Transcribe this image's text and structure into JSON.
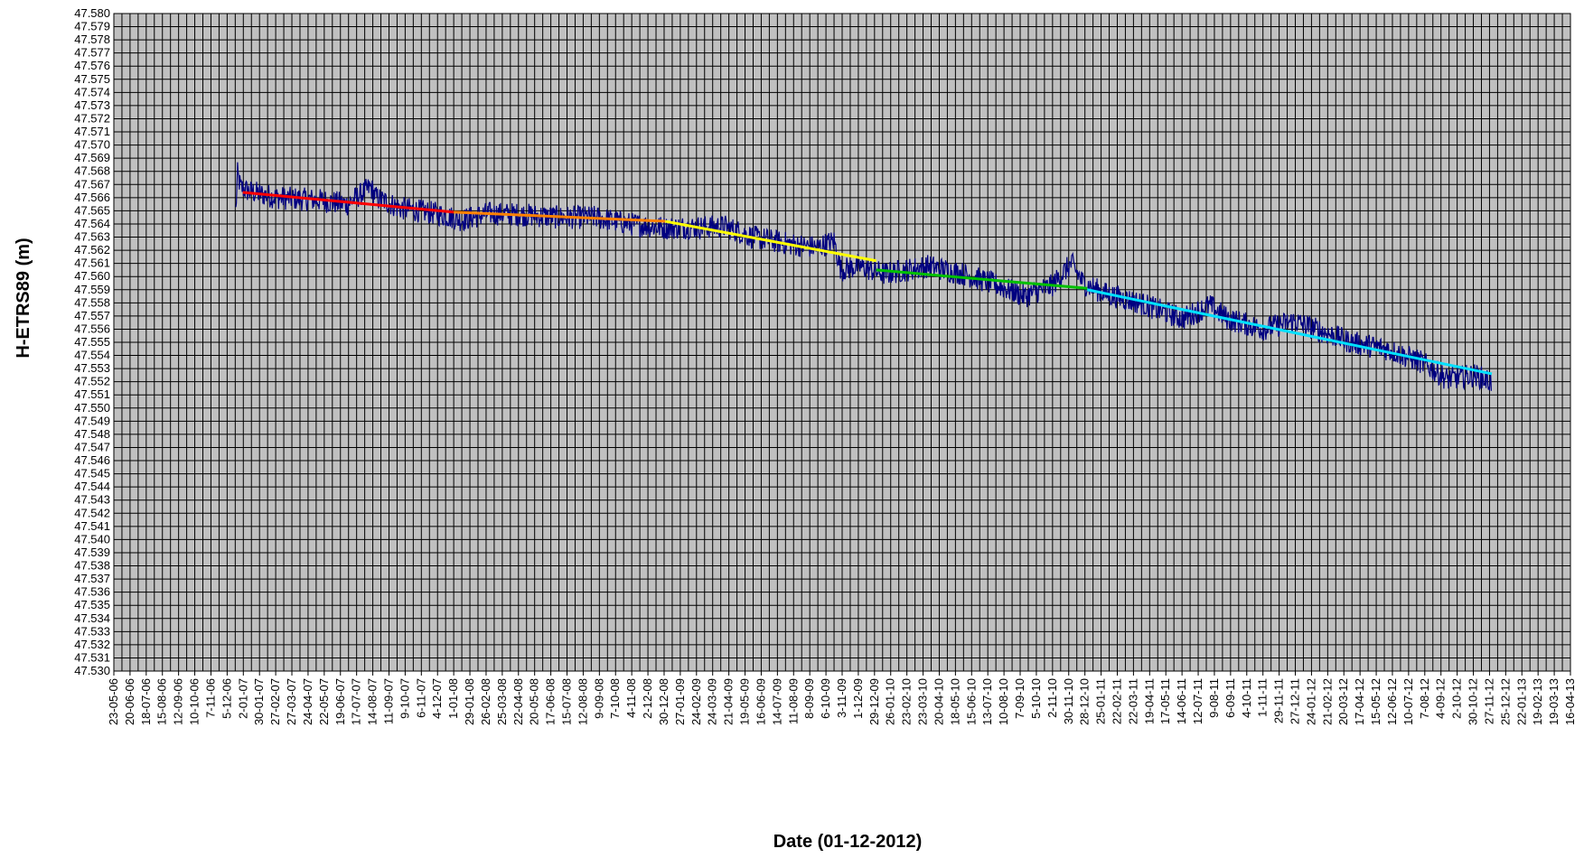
{
  "chart_data": {
    "type": "line",
    "xlabel": "Date (01-12-2012)",
    "ylabel": "H-ETRS89 (m)",
    "ylim": [
      47.53,
      47.58
    ],
    "y_tick_step": 0.001,
    "y_decimals": 3,
    "grid": true,
    "legend": "none",
    "colors": {
      "plot_background": "#c0c0c0",
      "gridline": "#000000",
      "series": "#000080"
    },
    "x_ticks": [
      "23-05-06",
      "20-06-06",
      "18-07-06",
      "15-08-06",
      "12-09-06",
      "10-10-06",
      "7-11-06",
      "5-12-06",
      "2-01-07",
      "30-01-07",
      "27-02-07",
      "27-03-07",
      "24-04-07",
      "22-05-07",
      "19-06-07",
      "17-07-07",
      "14-08-07",
      "11-09-07",
      "9-10-07",
      "6-11-07",
      "4-12-07",
      "1-01-08",
      "29-01-08",
      "26-02-08",
      "25-03-08",
      "22-04-08",
      "20-05-08",
      "17-06-08",
      "15-07-08",
      "12-08-08",
      "9-09-08",
      "7-10-08",
      "4-11-08",
      "2-12-08",
      "30-12-08",
      "27-01-09",
      "24-02-09",
      "24-03-09",
      "21-04-09",
      "19-05-09",
      "16-06-09",
      "14-07-09",
      "11-08-09",
      "8-09-09",
      "6-10-09",
      "3-11-09",
      "1-12-09",
      "29-12-09",
      "26-01-10",
      "23-02-10",
      "23-03-10",
      "20-04-10",
      "18-05-10",
      "15-06-10",
      "13-07-10",
      "10-08-10",
      "7-09-10",
      "5-10-10",
      "2-11-10",
      "30-11-10",
      "28-12-10",
      "25-01-11",
      "22-02-11",
      "22-03-11",
      "19-04-11",
      "17-05-11",
      "14-06-11",
      "12-07-11",
      "9-08-11",
      "6-09-11",
      "4-10-11",
      "1-11-11",
      "29-11-11",
      "27-12-11",
      "24-01-12",
      "21-02-12",
      "20-03-12",
      "17-04-12",
      "15-05-12",
      "12-06-12",
      "10-07-12",
      "7-08-12",
      "4-09-12",
      "2-10-12",
      "30-10-12",
      "27-11-12",
      "25-12-12",
      "22-01-13",
      "19-02-13",
      "19-03-13",
      "16-04-13"
    ],
    "series": [
      {
        "values_profile": [
          [
            "2006-12-20",
            47.565
          ],
          [
            "2006-12-23",
            47.5678
          ],
          [
            "2006-12-28",
            47.5668
          ],
          [
            "2007-01-10",
            47.5665
          ],
          [
            "2007-03-01",
            47.566
          ],
          [
            "2007-05-15",
            47.5658
          ],
          [
            "2007-07-01",
            47.5655
          ],
          [
            "2007-08-10",
            47.5668
          ],
          [
            "2007-08-20",
            47.566
          ],
          [
            "2007-10-01",
            47.5652
          ],
          [
            "2007-12-01",
            47.5648
          ],
          [
            "2008-01-15",
            47.5643
          ],
          [
            "2008-03-01",
            47.5648
          ],
          [
            "2008-05-01",
            47.5647
          ],
          [
            "2008-07-01",
            47.5645
          ],
          [
            "2008-09-01",
            47.5645
          ],
          [
            "2008-11-01",
            47.564
          ],
          [
            "2009-01-01",
            47.5637
          ],
          [
            "2009-04-15",
            47.5638
          ],
          [
            "2009-06-01",
            47.563
          ],
          [
            "2009-08-01",
            47.5625
          ],
          [
            "2009-09-20",
            47.5622
          ],
          [
            "2009-10-20",
            47.5627
          ],
          [
            "2009-11-01",
            47.5605
          ],
          [
            "2009-12-01",
            47.5608
          ],
          [
            "2010-01-15",
            47.5602
          ],
          [
            "2010-04-01",
            47.5608
          ],
          [
            "2010-06-01",
            47.5602
          ],
          [
            "2010-08-01",
            47.5593
          ],
          [
            "2010-09-15",
            47.5585
          ],
          [
            "2010-11-01",
            47.5593
          ],
          [
            "2010-12-05",
            47.561
          ],
          [
            "2010-12-25",
            47.5595
          ],
          [
            "2011-02-01",
            47.5587
          ],
          [
            "2011-04-01",
            47.558
          ],
          [
            "2011-06-15",
            47.5568
          ],
          [
            "2011-08-01",
            47.5578
          ],
          [
            "2011-09-01",
            47.5568
          ],
          [
            "2011-11-01",
            47.556
          ],
          [
            "2011-12-25",
            47.5566
          ],
          [
            "2012-02-01",
            47.556
          ],
          [
            "2012-04-01",
            47.555
          ],
          [
            "2012-06-01",
            47.5545
          ],
          [
            "2012-08-01",
            47.5535
          ],
          [
            "2012-09-15",
            47.5522
          ],
          [
            "2012-11-01",
            47.5525
          ],
          [
            "2012-11-30",
            47.552
          ]
        ]
      }
    ],
    "trend_segments": [
      {
        "color": "#ff0000",
        "from": [
          "2007-01-01",
          47.5664
        ],
        "to": [
          "2008-01-01",
          47.5649
        ]
      },
      {
        "color": "#ff8000",
        "from": [
          "2008-01-01",
          47.5649
        ],
        "to": [
          "2009-01-01",
          47.5642
        ]
      },
      {
        "color": "#ffff00",
        "from": [
          "2009-01-01",
          47.5642
        ],
        "to": [
          "2010-01-01",
          47.5612
        ]
      },
      {
        "color": "#00c000",
        "from": [
          "2010-01-01",
          47.5605
        ],
        "to": [
          "2011-01-01",
          47.5591
        ]
      },
      {
        "color": "#00e0ff",
        "from": [
          "2011-01-01",
          47.559
        ],
        "to": [
          "2012-12-01",
          47.5526
        ]
      }
    ]
  }
}
